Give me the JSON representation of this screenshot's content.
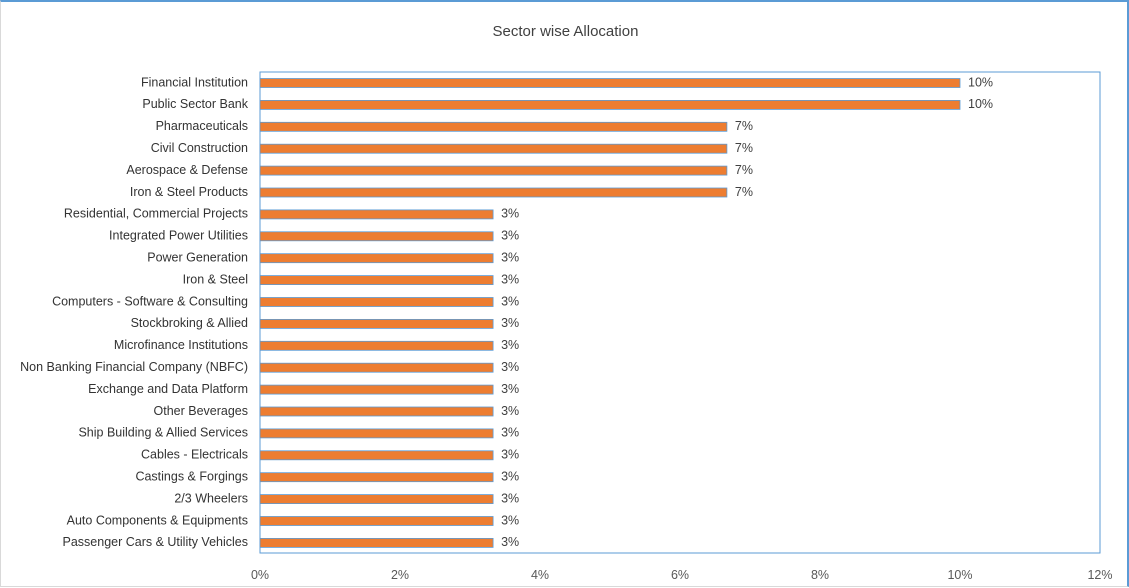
{
  "chart_data": {
    "type": "bar",
    "orientation": "horizontal",
    "title": "Sector wise Allocation",
    "xlabel": "",
    "ylabel": "",
    "xlim": [
      0,
      12
    ],
    "x_ticks": [
      "0%",
      "2%",
      "4%",
      "6%",
      "8%",
      "10%",
      "12%"
    ],
    "grid": false,
    "legend": "none",
    "bar_color": "#ed7d31",
    "bar_edge_color": "#5b9bd5",
    "plot_border_color": "#5b9bd5",
    "categories": [
      "Financial Institution",
      "Public Sector Bank",
      "Pharmaceuticals",
      "Civil Construction",
      "Aerospace & Defense",
      "Iron & Steel Products",
      "Residential, Commercial Projects",
      "Integrated Power Utilities",
      "Power Generation",
      "Iron & Steel",
      "Computers - Software & Consulting",
      "Stockbroking & Allied",
      "Microfinance Institutions",
      "Non Banking Financial Company (NBFC)",
      "Exchange and Data Platform",
      "Other Beverages",
      "Ship Building & Allied Services",
      "Cables - Electricals",
      "Castings & Forgings",
      "2/3 Wheelers",
      "Auto Components & Equipments",
      "Passenger Cars & Utility Vehicles"
    ],
    "values": [
      10,
      10,
      6.67,
      6.67,
      6.67,
      6.67,
      3.33,
      3.33,
      3.33,
      3.33,
      3.33,
      3.33,
      3.33,
      3.33,
      3.33,
      3.33,
      3.33,
      3.33,
      3.33,
      3.33,
      3.33,
      3.33
    ],
    "data_labels": [
      "10%",
      "10%",
      "7%",
      "7%",
      "7%",
      "7%",
      "3%",
      "3%",
      "3%",
      "3%",
      "3%",
      "3%",
      "3%",
      "3%",
      "3%",
      "3%",
      "3%",
      "3%",
      "3%",
      "3%",
      "3%",
      "3%"
    ]
  }
}
